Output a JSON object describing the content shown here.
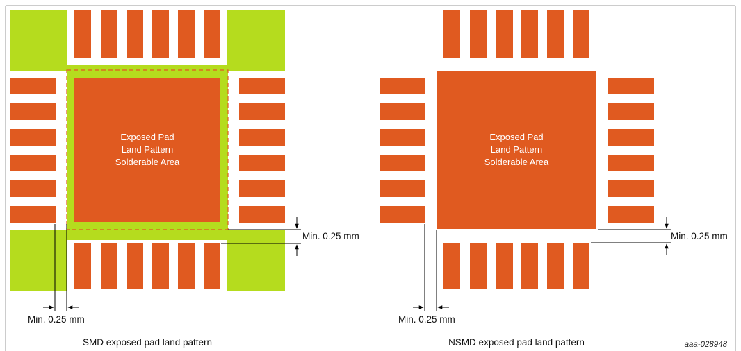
{
  "colors": {
    "copper": "#e05a20",
    "solder_mask": "#b5dc1e",
    "dashed_outline": "#e05a20",
    "dimension_line": "#000000",
    "pad_text": "#ffffff",
    "frame": "#9a9a9a"
  },
  "figure_id": "aaa-028948",
  "diagrams": {
    "smd": {
      "pad_text": [
        "Exposed Pad",
        "Land Pattern",
        "Solderable Area"
      ],
      "dim_right_label": "Min. 0.25 mm",
      "dim_bottom_label": "Min. 0.25 mm",
      "caption": "SMD exposed pad land pattern"
    },
    "nsmd": {
      "pad_text": [
        "Exposed Pad",
        "Land Pattern",
        "Solderable Area"
      ],
      "dim_right_label": "Min. 0.25 mm",
      "dim_bottom_label": "Min. 0.25 mm",
      "caption": "NSMD exposed pad land pattern"
    }
  }
}
